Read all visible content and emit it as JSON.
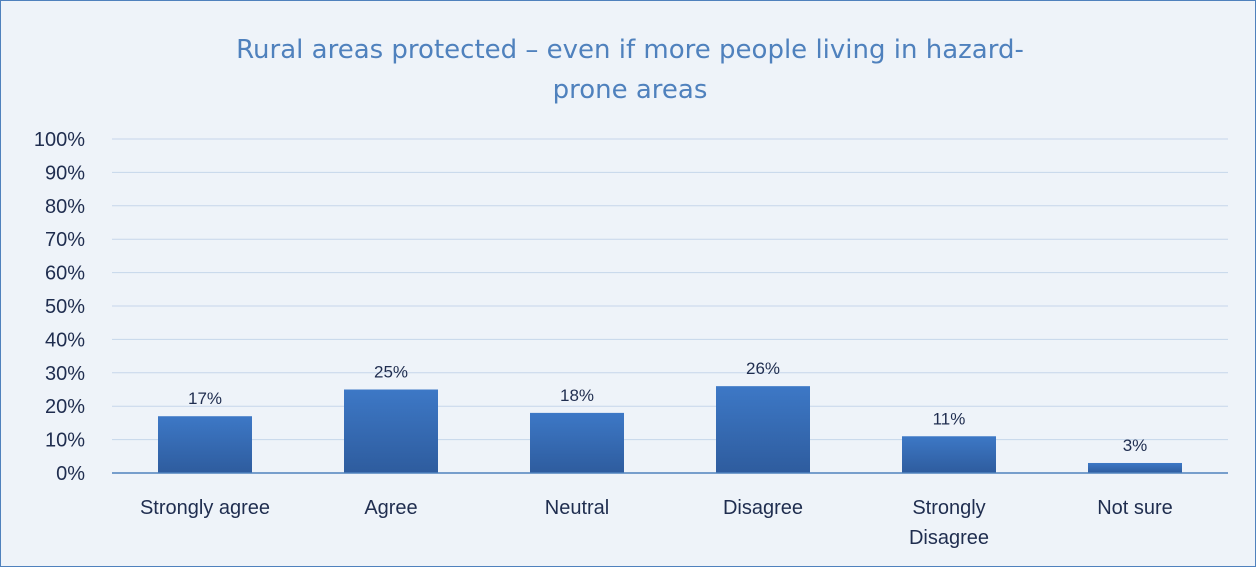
{
  "chart_data": {
    "type": "bar",
    "title": "Rural areas protected – even if more people living in hazard-prone areas",
    "title_lines": [
      "Rural areas protected – even if more people living in hazard-",
      "prone areas"
    ],
    "categories": [
      "Strongly agree",
      "Agree",
      "Neutral",
      "Disagree",
      "Strongly Disagree",
      "Not sure"
    ],
    "category_lines": [
      [
        "Strongly agree"
      ],
      [
        "Agree"
      ],
      [
        "Neutral"
      ],
      [
        "Disagree"
      ],
      [
        "Strongly",
        "Disagree"
      ],
      [
        "Not sure"
      ]
    ],
    "values": [
      17,
      25,
      18,
      26,
      11,
      3
    ],
    "data_labels": [
      "17%",
      "25%",
      "18%",
      "26%",
      "11%",
      "3%"
    ],
    "y_ticks": [
      "0%",
      "10%",
      "20%",
      "30%",
      "40%",
      "50%",
      "60%",
      "70%",
      "80%",
      "90%",
      "100%"
    ],
    "ylim": [
      0,
      100
    ],
    "xlabel": "",
    "ylabel": "",
    "grid": true,
    "legend": "none",
    "colors": {
      "bar": "#3a70bf",
      "bar_dark": "#2e5a9c",
      "grid": "#c5d6ea",
      "axis": "#4f81bd",
      "title": "#4f81bd",
      "background": "#eef3f9"
    }
  }
}
